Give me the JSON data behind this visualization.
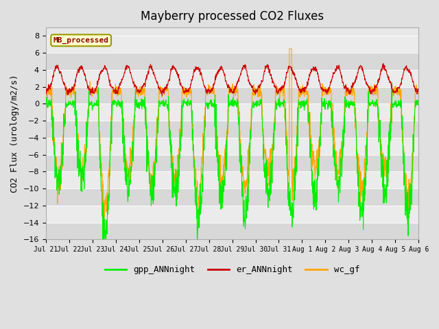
{
  "title": "Mayberry processed CO2 Fluxes",
  "ylabel": "CO2 Flux (urology/m2/s)",
  "ylim": [
    -16,
    9
  ],
  "yticks": [
    -16,
    -14,
    -12,
    -10,
    -8,
    -6,
    -4,
    -2,
    0,
    2,
    4,
    6,
    8
  ],
  "fig_bg_color": "#e0e0e0",
  "plot_bg_color": "#e8e8e8",
  "stripe_dark": "#d8d8d8",
  "stripe_light": "#ebebeb",
  "legend_label": "MB_processed",
  "legend_text_color": "#8b0000",
  "legend_bg": "#ffffcc",
  "legend_border": "#999900",
  "line_colors": {
    "gpp": "#00ee00",
    "er": "#cc0000",
    "wc": "#ffa500"
  },
  "legend_items": [
    {
      "label": "gpp_ANNnight",
      "color": "#00ee00"
    },
    {
      "label": "er_ANNnight",
      "color": "#cc0000"
    },
    {
      "label": "wc_gf",
      "color": "#ffa500"
    }
  ],
  "n_days": 16,
  "points_per_day": 96,
  "start_day": 21
}
